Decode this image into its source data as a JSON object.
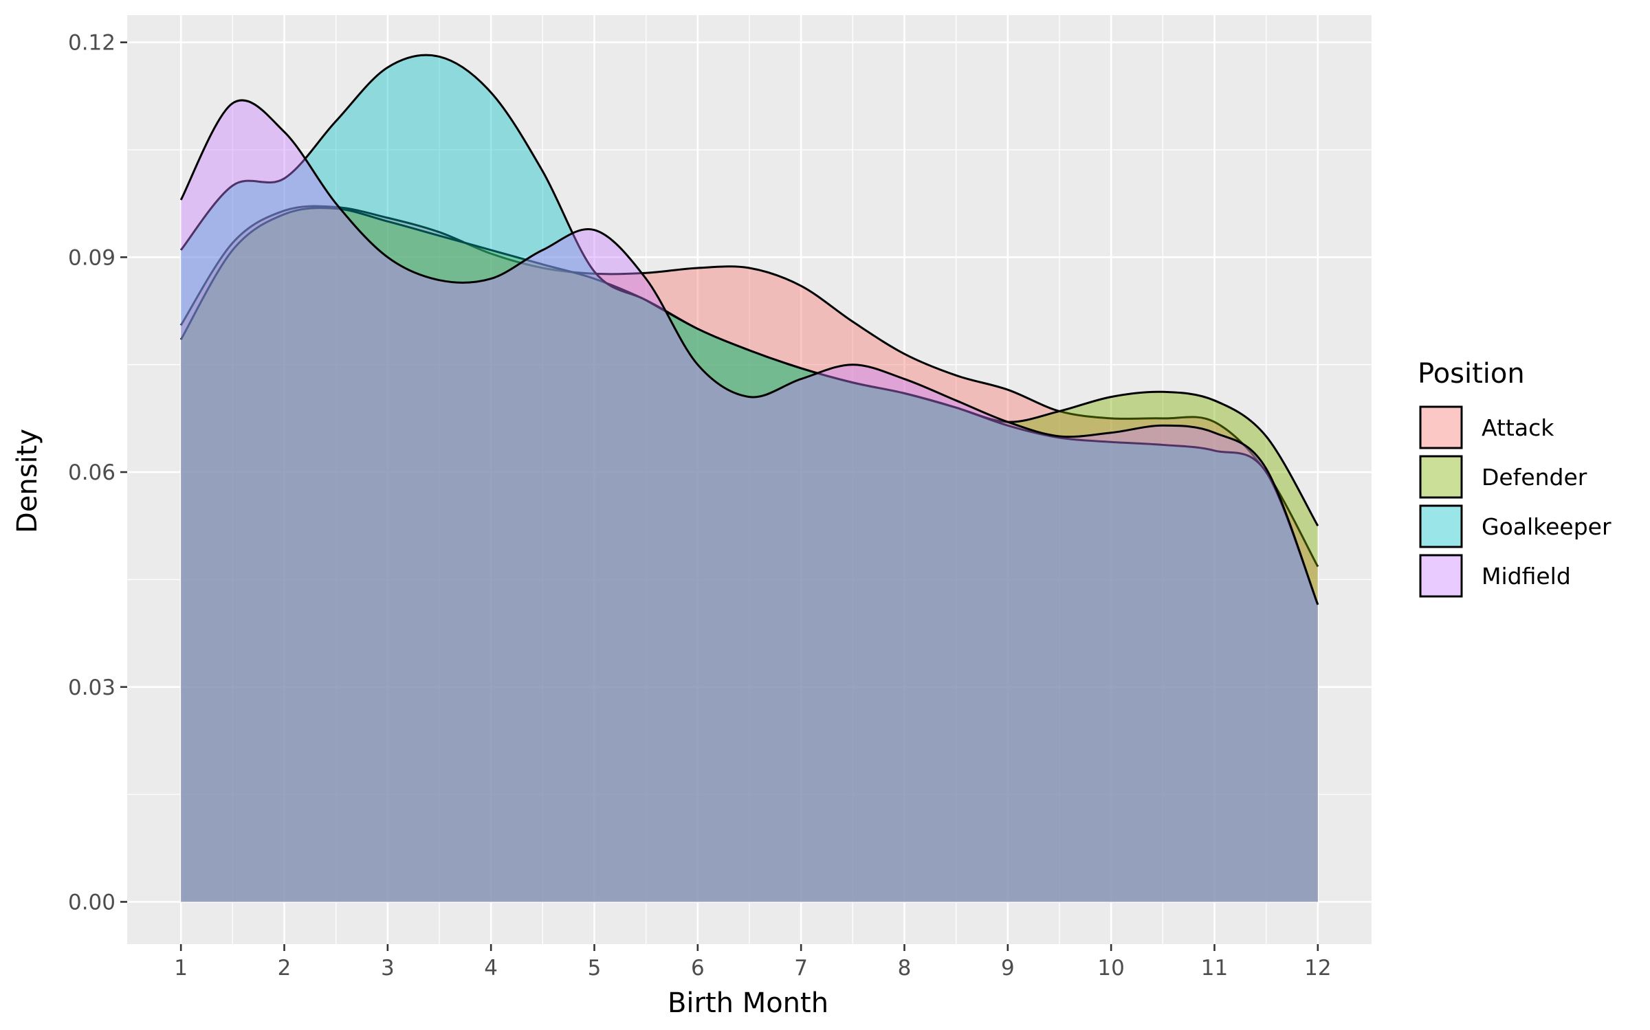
{
  "chart_data": {
    "type": "area",
    "subtype": "density",
    "xlabel": "Birth Month",
    "ylabel": "Density",
    "x_ticks": [
      1,
      2,
      3,
      4,
      5,
      6,
      7,
      8,
      9,
      10,
      11,
      12
    ],
    "x_tick_labels": [
      "1",
      "2",
      "3",
      "4",
      "5",
      "6",
      "7",
      "8",
      "9",
      "10",
      "11",
      "12"
    ],
    "y_ticks": [
      0,
      0.03,
      0.06,
      0.09,
      0.12
    ],
    "y_tick_labels": [
      "0.00",
      "0.03",
      "0.06",
      "0.09",
      "0.12"
    ],
    "xlim": [
      0.48,
      12.52
    ],
    "ylim": [
      -0.0059,
      0.1238
    ],
    "grid": true,
    "background": "#EBEBEB",
    "fill_opacity": 0.4,
    "legend": {
      "title": "Position",
      "placement": "right"
    },
    "series": [
      {
        "name": "Attack",
        "color": "#F8766D",
        "x": [
          1,
          1.5,
          2,
          2.5,
          3,
          3.5,
          4,
          4.5,
          5,
          5.5,
          6,
          6.5,
          7,
          7.5,
          8,
          8.5,
          9,
          9.5,
          10,
          10.5,
          11,
          11.5,
          12
        ],
        "y": [
          0.0805,
          0.092,
          0.0965,
          0.097,
          0.0955,
          0.0935,
          0.0905,
          0.0885,
          0.0877,
          0.0878,
          0.0885,
          0.0885,
          0.086,
          0.081,
          0.0765,
          0.0735,
          0.0715,
          0.0685,
          0.0675,
          0.0675,
          0.067,
          0.06,
          0.0468
        ]
      },
      {
        "name": "Defender",
        "color": "#7CAE00",
        "x": [
          1,
          1.5,
          2,
          2.5,
          3,
          3.5,
          4,
          4.5,
          5,
          5.5,
          6,
          6.5,
          7,
          7.5,
          8,
          8.5,
          9,
          9.5,
          10,
          10.5,
          11,
          11.5,
          12
        ],
        "y": [
          0.0785,
          0.091,
          0.096,
          0.0968,
          0.095,
          0.093,
          0.091,
          0.089,
          0.087,
          0.084,
          0.08,
          0.077,
          0.0745,
          0.0725,
          0.071,
          0.069,
          0.067,
          0.0685,
          0.0705,
          0.0712,
          0.07,
          0.065,
          0.0525
        ]
      },
      {
        "name": "Goalkeeper",
        "color": "#00BFC4",
        "x": [
          1,
          1.5,
          2,
          2.5,
          3,
          3.5,
          4,
          4.5,
          5,
          5.5,
          6,
          6.5,
          7,
          7.5,
          8,
          8.5,
          9,
          9.5,
          10,
          10.5,
          11,
          11.5,
          12
        ],
        "y": [
          0.091,
          0.1,
          0.101,
          0.109,
          0.1165,
          0.118,
          0.113,
          0.102,
          0.088,
          0.084,
          0.08,
          0.077,
          0.0745,
          0.0725,
          0.071,
          0.069,
          0.0665,
          0.0648,
          0.0642,
          0.0638,
          0.063,
          0.06,
          0.0415
        ]
      },
      {
        "name": "Midfield",
        "color": "#C77CFF",
        "x": [
          1,
          1.5,
          2,
          2.5,
          3,
          3.5,
          4,
          4.5,
          5,
          5.5,
          6,
          6.5,
          7,
          7.5,
          8,
          8.5,
          9,
          9.5,
          10,
          10.5,
          11,
          11.5,
          12
        ],
        "y": [
          0.098,
          0.1115,
          0.1075,
          0.0975,
          0.09,
          0.0868,
          0.087,
          0.091,
          0.0938,
          0.087,
          0.075,
          0.0705,
          0.073,
          0.075,
          0.073,
          0.07,
          0.067,
          0.065,
          0.0655,
          0.0665,
          0.0655,
          0.0605,
          0.0415
        ]
      }
    ]
  }
}
